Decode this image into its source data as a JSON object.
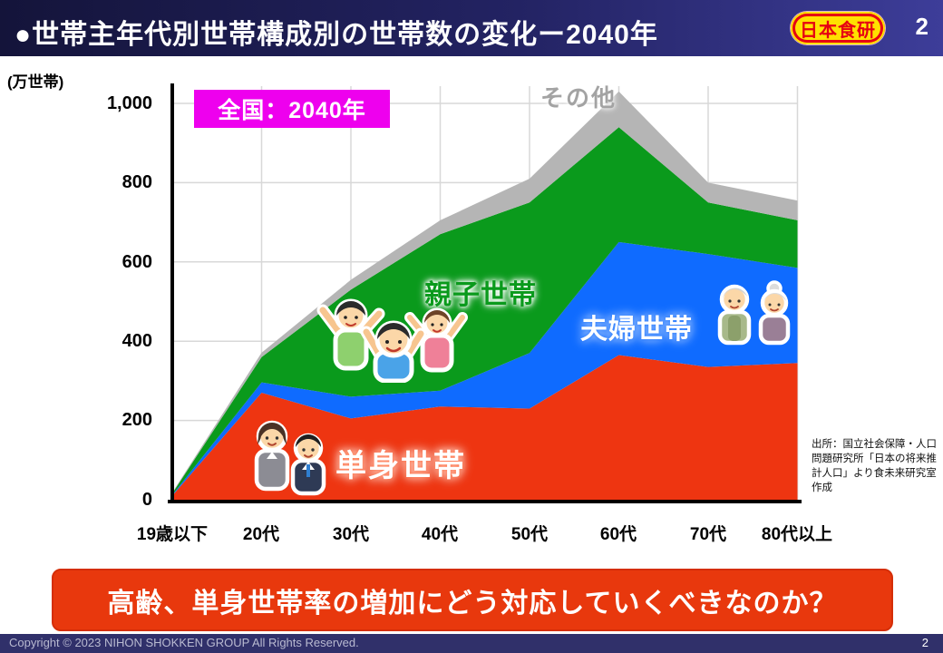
{
  "header": {
    "title": "●世帯主年代別世帯構成別の世帯数の変化ー2040年",
    "logo_text": "日本食研",
    "page_number": "2"
  },
  "chart_data": {
    "type": "area",
    "stacked": true,
    "highlight_box_label": "全国：2040年",
    "unit_label": "(万世帯)",
    "categories": [
      "19歳以下",
      "20代",
      "30代",
      "40代",
      "50代",
      "60代",
      "70代",
      "80代以上"
    ],
    "series": [
      {
        "name": "単身世帯",
        "color": "#ee3511",
        "values": [
          10,
          270,
          205,
          235,
          230,
          365,
          335,
          345
        ]
      },
      {
        "name": "夫婦世帯",
        "color": "#0f6bff",
        "values": [
          2,
          26,
          55,
          40,
          140,
          285,
          285,
          240
        ]
      },
      {
        "name": "親子世帯",
        "color": "#0a9a1c",
        "values": [
          4,
          64,
          270,
          395,
          380,
          290,
          130,
          120
        ]
      },
      {
        "name": "その他",
        "color": "#b5b5b5",
        "values": [
          2,
          11,
          25,
          35,
          60,
          90,
          50,
          50
        ]
      }
    ],
    "yticks": [
      "1,000",
      "800",
      "600",
      "400",
      "200",
      "0"
    ],
    "ylim": [
      0,
      1000
    ],
    "grid": true,
    "legend_position": "labels drawn inside plot areas",
    "annotation_colors": {
      "sonota": "#a3a3a3",
      "oyako": "#0a9a1c",
      "fufu_text": "#ffffff",
      "tanshin_text": "#ffffff"
    },
    "illustrations": [
      {
        "icon": "family-clipart",
        "represents": "親子世帯"
      },
      {
        "icon": "elderly-couple-clipart",
        "represents": "夫婦世帯"
      },
      {
        "icon": "business-adults-clipart",
        "represents": "単身世帯"
      }
    ]
  },
  "source_note": "出所：国立社会保障・人口問題研究所「日本の将来推計人口」より食未来研究室作成",
  "banner": {
    "text": "高齢、単身世帯率の増加にどう対応していくべきなのか？"
  },
  "footer": {
    "copyright": "Copyright © 2023 NIHON SHOKKEN GROUP All Rights Reserved.",
    "page_number": "2"
  },
  "colors": {
    "header_gradient_start": "#14143a",
    "header_gradient_end": "#3d3d99",
    "logo_bg": "#ffe100",
    "logo_text": "#e60012",
    "highlight_box_bg": "#ee00ee",
    "banner_bg": "#e8380d",
    "footer_bar": "#30306a"
  }
}
